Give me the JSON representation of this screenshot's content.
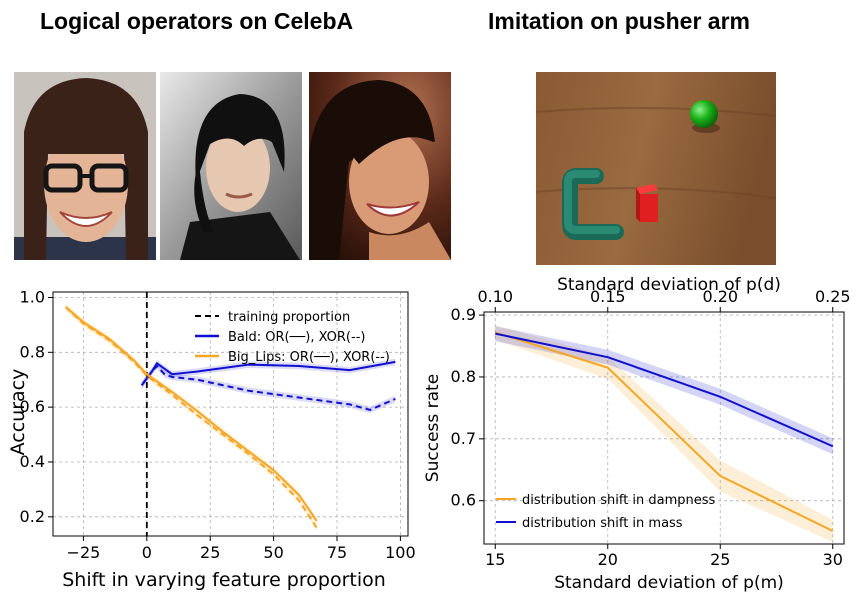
{
  "titles": {
    "left": "Logical operators on CelebA",
    "right": "Imitation on pusher arm"
  },
  "images": {
    "faces": [
      "woman-with-glasses-photo",
      "man-with-dark-hair-photo",
      "smiling-woman-photo"
    ],
    "pusher": "pusher-arm-simulation-render"
  },
  "colors": {
    "blue": "#1010d0",
    "orange": "#f5a623",
    "black": "#000000"
  },
  "chart_data": [
    {
      "type": "line",
      "xlabel": "Shift in varying feature proportion",
      "ylabel": "Accuracy",
      "xlim": [
        -37,
        103
      ],
      "ylim": [
        0.13,
        1.02
      ],
      "xticks": [
        -25,
        0,
        25,
        50,
        75,
        100
      ],
      "xtick_labels": [
        "−25",
        "0",
        "25",
        "50",
        "75",
        "100"
      ],
      "yticks": [
        0.2,
        0.4,
        0.6,
        0.8,
        1.0
      ],
      "ytick_labels": [
        "0.2",
        "0.4",
        "0.6",
        "0.8",
        "1.0"
      ],
      "grid": true,
      "legend_position": "top-right",
      "legend": [
        {
          "label": "training proportion",
          "color": "#000000",
          "dash": "dashed"
        },
        {
          "label": "Bald: OR(──), XOR(--)",
          "color": "#1010d0",
          "dash": "solid"
        },
        {
          "label": "Big_Lips: OR(──), XOR(--)",
          "color": "#f5a623",
          "dash": "solid"
        }
      ],
      "vline": {
        "x": 0,
        "style": "dashed"
      },
      "series": [
        {
          "color": "#1010d0",
          "dash": "solid",
          "x": [
            -2,
            2,
            4,
            7,
            10,
            20,
            40,
            60,
            80,
            98
          ],
          "y": [
            0.68,
            0.73,
            0.76,
            0.74,
            0.72,
            0.73,
            0.755,
            0.75,
            0.735,
            0.765
          ]
        },
        {
          "color": "#1010d0",
          "dash": "dashed",
          "x": [
            -2,
            2,
            4,
            7,
            10,
            20,
            40,
            60,
            80,
            88,
            98
          ],
          "y": [
            0.68,
            0.73,
            0.75,
            0.72,
            0.71,
            0.7,
            0.66,
            0.635,
            0.61,
            0.59,
            0.63
          ]
        },
        {
          "color": "#f5a623",
          "dash": "solid",
          "x": [
            -32,
            -25,
            -15,
            -5,
            0,
            10,
            20,
            30,
            40,
            50,
            60,
            67
          ],
          "y": [
            0.965,
            0.91,
            0.85,
            0.77,
            0.72,
            0.655,
            0.585,
            0.51,
            0.44,
            0.37,
            0.28,
            0.185
          ]
        },
        {
          "color": "#f5a623",
          "dash": "dashed",
          "x": [
            -32,
            -25,
            -15,
            -5,
            0,
            10,
            20,
            30,
            40,
            50,
            60,
            67
          ],
          "y": [
            0.965,
            0.905,
            0.845,
            0.765,
            0.715,
            0.645,
            0.57,
            0.5,
            0.43,
            0.355,
            0.26,
            0.16
          ]
        }
      ]
    },
    {
      "type": "line",
      "xlabel": "Standard deviation of p(m)",
      "x2label": "Standard deviation of p(d)",
      "ylabel": "Success rate",
      "xlim": [
        14.5,
        30.5
      ],
      "ylim": [
        0.53,
        0.905
      ],
      "xticks": [
        15,
        20,
        25,
        30
      ],
      "x2ticks": [
        0.1,
        0.15,
        0.2,
        0.25
      ],
      "x2tick_labels": [
        "0.10",
        "0.15",
        "0.20",
        "0.25"
      ],
      "yticks": [
        0.6,
        0.7,
        0.8,
        0.9
      ],
      "ytick_labels": [
        "0.6",
        "0.7",
        "0.8",
        "0.9"
      ],
      "grid": true,
      "legend_position": "bottom-left",
      "series": [
        {
          "name": "distribution shift in dampness",
          "color": "#f5a623",
          "x": [
            15,
            20,
            25,
            30
          ],
          "y": [
            0.872,
            0.815,
            0.64,
            0.551
          ],
          "band": [
            0.012,
            0.018,
            0.025,
            0.018
          ]
        },
        {
          "name": "distribution shift in mass",
          "color": "#1010d0",
          "x": [
            15,
            20,
            25,
            30
          ],
          "y": [
            0.87,
            0.832,
            0.768,
            0.688
          ],
          "band": [
            0.012,
            0.012,
            0.013,
            0.013
          ]
        }
      ]
    }
  ]
}
